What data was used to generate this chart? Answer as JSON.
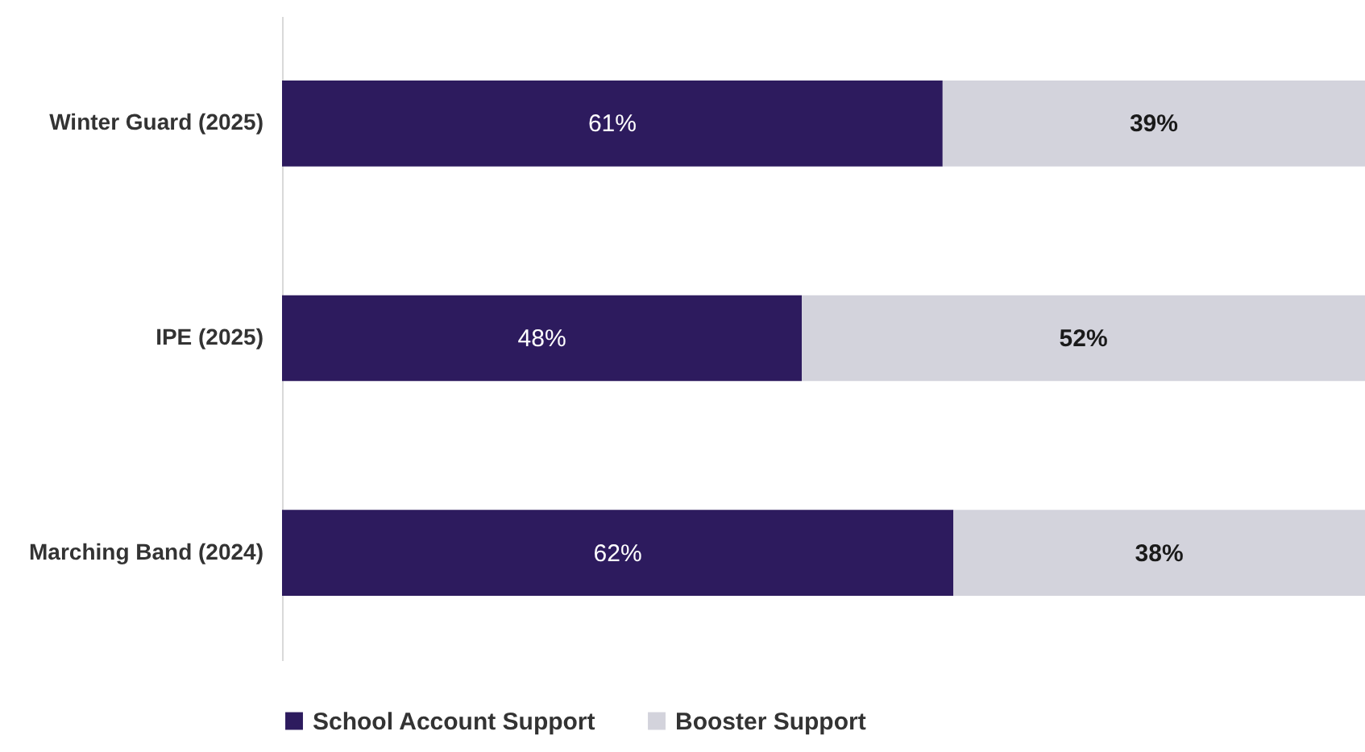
{
  "chart_data": {
    "type": "bar",
    "orientation": "horizontal",
    "stacked": true,
    "categories": [
      "Winter Guard (2025)",
      "IPE (2025)",
      "Marching Band (2024)"
    ],
    "series": [
      {
        "name": "School Account Support",
        "color": "#2d1b5e",
        "values": [
          61,
          48,
          62
        ],
        "value_labels": [
          "61%",
          "48%",
          "62%"
        ]
      },
      {
        "name": "Booster Support",
        "color": "#d3d3dc",
        "values": [
          39,
          52,
          38
        ],
        "value_labels": [
          "39%",
          "52%",
          "38%"
        ]
      }
    ],
    "xlim": [
      0,
      100
    ],
    "tick_labels": "y",
    "legend": "bottom"
  }
}
